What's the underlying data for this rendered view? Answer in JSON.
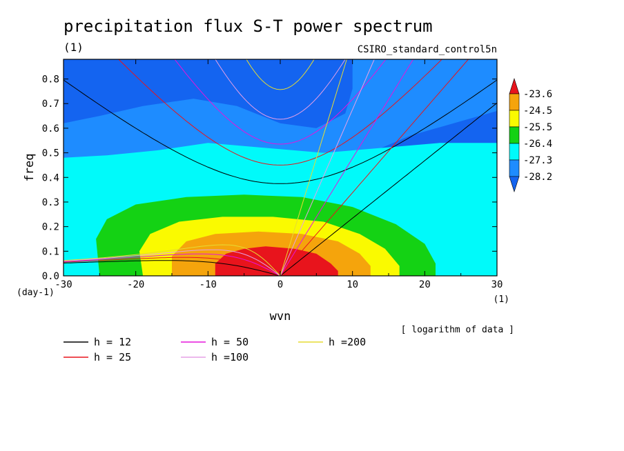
{
  "chart_data": {
    "type": "heatmap",
    "title": "precipitation flux S-T power spectrum",
    "subtitle_left": "(1)",
    "subtitle_right": "CSIRO_standard_control5n",
    "xlabel": "wvn",
    "ylabel": "freq",
    "x_unit": "(1)",
    "y_unit": "(day-1)",
    "xlim": [
      -30,
      30
    ],
    "ylim": [
      0,
      0.88
    ],
    "x_ticks": [
      "-30",
      "-20",
      "-10",
      "0",
      "10",
      "20",
      "30"
    ],
    "x_tick_values": [
      -30,
      -20,
      -10,
      0,
      10,
      20,
      30
    ],
    "y_ticks": [
      "0.0",
      "0.1",
      "0.2",
      "0.3",
      "0.4",
      "0.5",
      "0.6",
      "0.7",
      "0.8"
    ],
    "y_tick_values": [
      0,
      0.1,
      0.2,
      0.3,
      0.4,
      0.5,
      0.6,
      0.7,
      0.8
    ],
    "note": "[ logarithm of data ]",
    "colorbar": {
      "levels": [
        "-23.6",
        "-24.5",
        "-25.5",
        "-26.4",
        "-27.3",
        "-28.2"
      ],
      "colors": [
        "#e8141c",
        "#f5a40c",
        "#fafa00",
        "#14d214",
        "#00fafa",
        "#1e8cff",
        "#1464f0"
      ]
    },
    "filled_regions": [
      {
        "level": "above -23.6",
        "color": "#e8141c",
        "center": [
          -2,
          0.0
        ],
        "wvn_span": [
          -9,
          8
        ],
        "freq_top": 0.12
      },
      {
        "level": "-24.5 to -23.6",
        "color": "#f5a40c",
        "center": [
          -1,
          0.0
        ],
        "wvn_span": [
          -15,
          12.5
        ],
        "freq_top": 0.18
      },
      {
        "level": "-25.5 to -24.5",
        "color": "#fafa00",
        "center": [
          -1,
          0.0
        ],
        "wvn_span": [
          -19,
          16.5
        ],
        "freq_top": 0.24
      },
      {
        "level": "-26.4 to -25.5",
        "color": "#14d214",
        "center": [
          -2,
          0.0
        ],
        "wvn_span": [
          -25,
          21.5
        ],
        "freq_top": 0.32
      },
      {
        "level": "-27.3 to -26.4",
        "color": "#00fafa",
        "span": "most of domain below 0.5"
      },
      {
        "level": "-28.2 to -27.3",
        "color": "#1e8cff",
        "span": "freq 0.5 to 0.8"
      },
      {
        "level": "below -28.2",
        "color": "#1464f0",
        "span": "upper corners"
      }
    ],
    "series": [
      {
        "name": "h = 12",
        "color": "#000000",
        "equivalent_depth": 12
      },
      {
        "name": "h = 25",
        "color": "#e8141c",
        "equivalent_depth": 25
      },
      {
        "name": "h = 50",
        "color": "#e614dc",
        "equivalent_depth": 50
      },
      {
        "name": "h =100",
        "color": "#e6a0e6",
        "equivalent_depth": 100
      },
      {
        "name": "h =200",
        "color": "#e6dc32",
        "equivalent_depth": 200
      }
    ]
  }
}
